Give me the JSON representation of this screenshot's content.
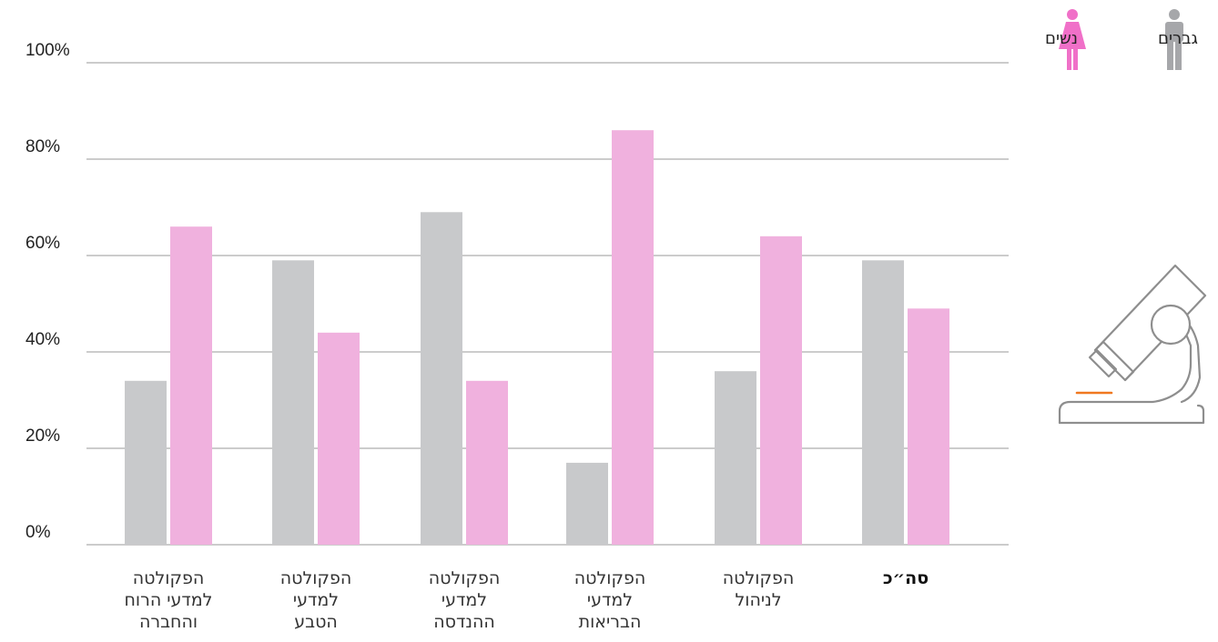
{
  "chart_data": {
    "type": "bar",
    "categories": [
      "הפקולטה למדעי הרוח והחברה",
      "הפקולטה למדעי הטבע",
      "הפקולטה למדעי ההנדסה",
      "הפקולטה למדעי הבריאות",
      "הפקולטה לניהול",
      "סה״כ"
    ],
    "category_lines": [
      [
        "הפקולטה",
        "למדעי הרוח",
        "והחברה"
      ],
      [
        "הפקולטה",
        "למדעי",
        "הטבע"
      ],
      [
        "הפקולטה",
        "למדעי",
        "ההנדסה"
      ],
      [
        "הפקולטה",
        "למדעי",
        "הבריאות"
      ],
      [
        "הפקולטה",
        "לניהול"
      ],
      [
        "סה״כ"
      ]
    ],
    "bold_category": "סה״כ",
    "series": [
      {
        "name": "גברים",
        "color": "#c8c9cb",
        "values": [
          34,
          59,
          69,
          17,
          36,
          59
        ]
      },
      {
        "name": "נשים",
        "color": "#f0b1de",
        "values": [
          66,
          44,
          34,
          86,
          64,
          49
        ]
      }
    ],
    "y_ticks": [
      "0%",
      "20%",
      "40%",
      "60%",
      "80%",
      "100%"
    ],
    "y_tick_values": [
      0,
      20,
      40,
      60,
      80,
      100
    ],
    "ylim": [
      0,
      100
    ],
    "grid": true,
    "legend_position": "top-right",
    "colors": {
      "men": "#c8c9cb",
      "women": "#f0b1de",
      "grid": "#9a9a9a",
      "men_icon": "#a6a7aa",
      "women_icon": "#f070c8",
      "microscope_stroke": "#8e8e8e",
      "microscope_slide": "#f07820"
    }
  },
  "legend": {
    "men_label": "גברים",
    "women_label": "נשים",
    "men_icon": "man-icon",
    "women_icon": "woman-icon"
  },
  "decoration": {
    "icon": "microscope-icon"
  }
}
